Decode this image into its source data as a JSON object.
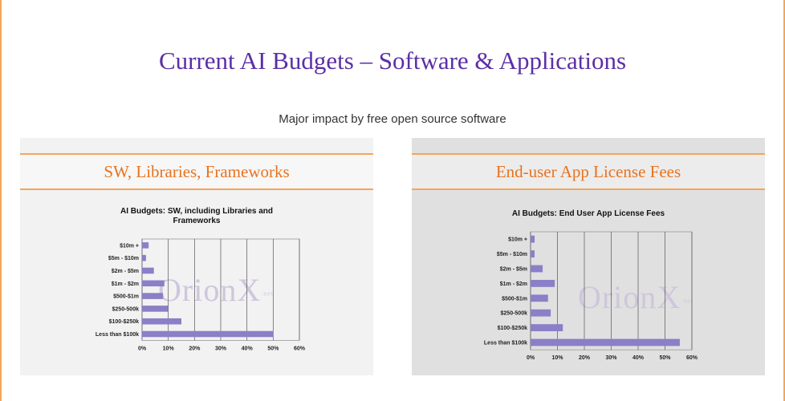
{
  "slide": {
    "title": "Current AI Budgets – Software & Applications",
    "subtitle": "Major impact by free open source software"
  },
  "panels": [
    {
      "heading": "SW, Libraries, Frameworks",
      "watermark": "OrionX",
      "watermark_suffix": ".net"
    },
    {
      "heading": "End-user App License Fees",
      "watermark": "OrionX",
      "watermark_suffix": ".net"
    }
  ],
  "colors": {
    "bar": "#8b7fc7",
    "accent": "#f3a65a",
    "title": "#5b2fa6",
    "heading": "#e8731e"
  },
  "chart_data": [
    {
      "type": "bar",
      "orientation": "horizontal",
      "title": "AI Budgets: SW, including Libraries and Frameworks",
      "categories": [
        "$10m +",
        "$5m - $10m",
        "$2m - $5m",
        "$1m - $2m",
        "$500-$1m",
        "$250-500k",
        "$100-$250k",
        "Less than $100k"
      ],
      "values": [
        2.5,
        1.5,
        4.5,
        8.5,
        8,
        10,
        15,
        50
      ],
      "xlim": [
        0,
        60
      ],
      "xticks": [
        "0%",
        "10%",
        "20%",
        "30%",
        "40%",
        "50%",
        "60%"
      ],
      "grid": "vertical"
    },
    {
      "type": "bar",
      "orientation": "horizontal",
      "title": "AI Budgets: End User App License Fees",
      "categories": [
        "$10m +",
        "$5m - $10m",
        "$2m - $5m",
        "$1m - $2m",
        "$500-$1m",
        "$250-500k",
        "$100-$250k",
        "Less than $100k"
      ],
      "values": [
        1.5,
        1.5,
        4.5,
        9,
        6.5,
        7.5,
        12,
        55.5
      ],
      "xlim": [
        0,
        60
      ],
      "xticks": [
        "0%",
        "10%",
        "20%",
        "30%",
        "40%",
        "50%",
        "60%"
      ],
      "grid": "vertical"
    }
  ]
}
